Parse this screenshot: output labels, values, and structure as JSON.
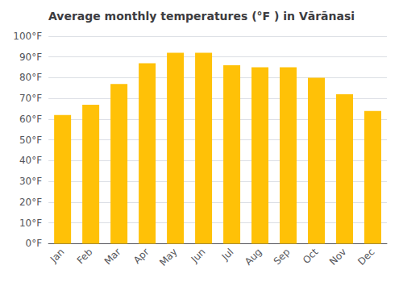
{
  "chart_data": {
    "type": "bar",
    "title": "Average monthly temperatures (°F ) in Vārānasi",
    "categories": [
      "Jan",
      "Feb",
      "Mar",
      "Apr",
      "May",
      "Jun",
      "Jul",
      "Aug",
      "Sep",
      "Oct",
      "Nov",
      "Dec"
    ],
    "values": [
      62,
      67,
      77,
      87,
      92,
      92,
      86,
      85,
      85,
      80,
      72,
      64
    ],
    "color": "#FFC107",
    "ylim": [
      0,
      100
    ],
    "yticks": [
      {
        "value": 0,
        "label": "0°F"
      },
      {
        "value": 10,
        "label": "10°F"
      },
      {
        "value": 20,
        "label": "20°F"
      },
      {
        "value": 30,
        "label": "30°F"
      },
      {
        "value": 40,
        "label": "40°F"
      },
      {
        "value": 50,
        "label": "50°F"
      },
      {
        "value": 60,
        "label": "60°F"
      },
      {
        "value": 70,
        "label": "70°F"
      },
      {
        "value": 80,
        "label": "80°F"
      },
      {
        "value": 90,
        "label": "90°F"
      },
      {
        "value": 100,
        "label": "100°F"
      }
    ],
    "grid": true
  }
}
